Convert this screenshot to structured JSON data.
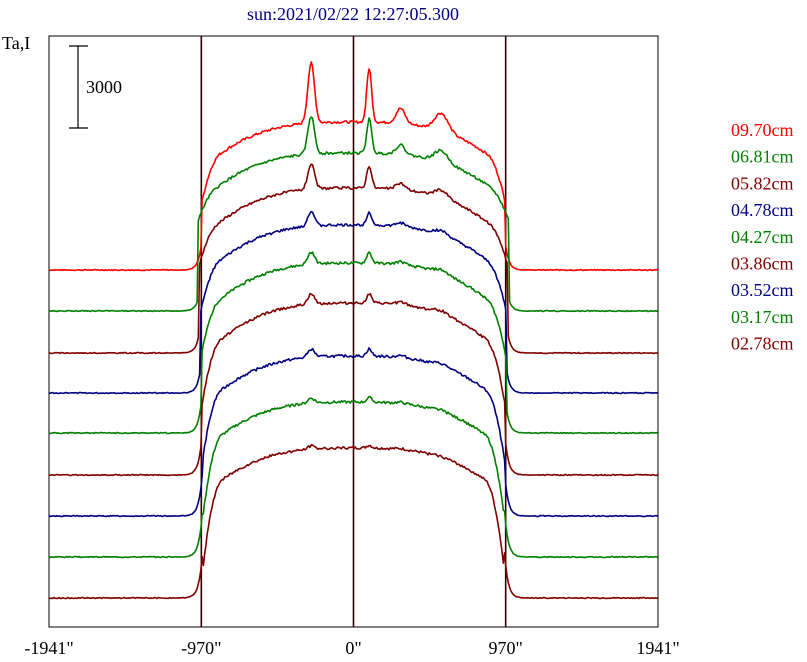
{
  "chart_data": {
    "type": "line",
    "title": "sun:2021/02/22 12:27:05.300",
    "ylabel": "Ta,I",
    "scale_bar_label": "3000",
    "x_ticks": [
      "-1941\"",
      "-970\"",
      "0\"",
      "970\"",
      "1941\""
    ],
    "x_tick_values": [
      -1941,
      -970,
      0,
      970,
      1941
    ],
    "xlim": [
      -1941,
      1941
    ],
    "vertical_lines_at": [
      -970,
      0,
      970
    ],
    "grid": false,
    "legend_position": "right",
    "series": [
      {
        "name": "09.70cm",
        "color": "#ff0000"
      },
      {
        "name": "06.81cm",
        "color": "#008000"
      },
      {
        "name": "05.82cm",
        "color": "#800000"
      },
      {
        "name": "04.78cm",
        "color": "#000080"
      },
      {
        "name": "04.27cm",
        "color": "#008000"
      },
      {
        "name": "03.86cm",
        "color": "#800000"
      },
      {
        "name": "03.52cm",
        "color": "#000080"
      },
      {
        "name": "03.17cm",
        "color": "#008000"
      },
      {
        "name": "02.78cm",
        "color": "#800000"
      }
    ]
  }
}
